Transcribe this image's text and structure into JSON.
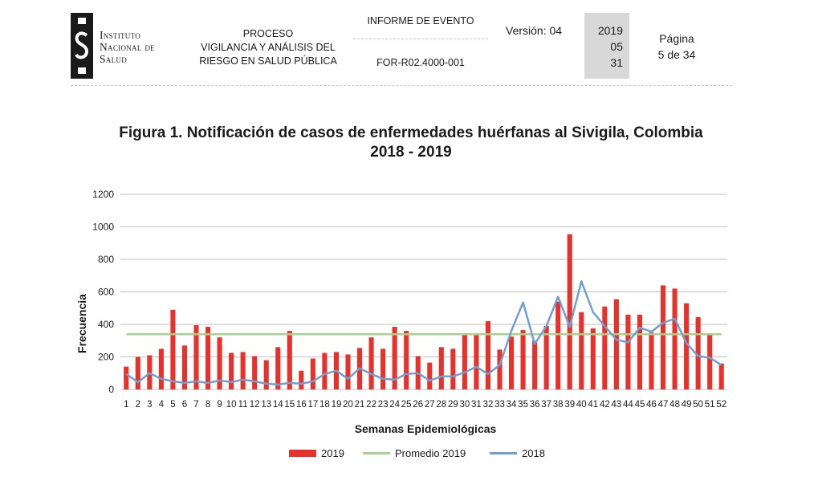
{
  "header": {
    "logo_lines": [
      "Instituto",
      "Nacional de",
      "Salud"
    ],
    "process_lines": [
      "PROCESO",
      "VIGILANCIA Y ANÁLISIS DEL",
      "RIESGO EN SALUD PÚBLICA"
    ],
    "report_title": "INFORME DE EVENTO",
    "report_code": "FOR-R02.4000-001",
    "version": "Versión: 04",
    "date_year": "2019",
    "date_month": "05",
    "date_day": "31",
    "page_label": "Página",
    "page_value": "5  de 34"
  },
  "figure": {
    "title_line1": "Figura 1. Notificación de casos de enfermedades huérfanas al Sivigila, Colombia",
    "title_line2": "2018 - 2019"
  },
  "colors": {
    "bars_2019": "#e8312a",
    "avg_2019": "#a9d18e",
    "line_2018": "#6f9fd3",
    "grid": "#bfbfbf"
  },
  "chart_data": {
    "type": "bar",
    "xlabel": "Semanas Epidemiológicas",
    "ylabel": "Frecuencia",
    "ylim": [
      0,
      1200
    ],
    "yticks": [
      0,
      200,
      400,
      600,
      800,
      1000,
      1200
    ],
    "grid": true,
    "legend_position": "bottom",
    "categories": [
      "1",
      "2",
      "3",
      "4",
      "5",
      "6",
      "7",
      "8",
      "9",
      "10",
      "11",
      "12",
      "13",
      "14",
      "15",
      "16",
      "17",
      "18",
      "19",
      "20",
      "21",
      "22",
      "23",
      "24",
      "25",
      "26",
      "27",
      "28",
      "29",
      "30",
      "31",
      "32",
      "33",
      "34",
      "35",
      "36",
      "37",
      "38",
      "39",
      "40",
      "41",
      "42",
      "43",
      "44",
      "45",
      "46",
      "47",
      "48",
      "49",
      "50",
      "51",
      "52"
    ],
    "series": [
      {
        "name": "2019",
        "type": "bar",
        "values": [
          140,
          200,
          210,
          250,
          490,
          270,
          395,
          385,
          320,
          225,
          230,
          205,
          180,
          260,
          360,
          115,
          190,
          225,
          230,
          215,
          255,
          320,
          250,
          385,
          360,
          205,
          165,
          260,
          250,
          335,
          335,
          420,
          245,
          325,
          365,
          300,
          390,
          540,
          955,
          475,
          375,
          510,
          555,
          460,
          460,
          350,
          640,
          620,
          530,
          445,
          340,
          160
        ]
      },
      {
        "name": "Promedio 2019",
        "type": "line",
        "values": [
          340,
          340,
          340,
          340,
          340,
          340,
          340,
          340,
          340,
          340,
          340,
          340,
          340,
          340,
          340,
          340,
          340,
          340,
          340,
          340,
          340,
          340,
          340,
          340,
          340,
          340,
          340,
          340,
          340,
          340,
          340,
          340,
          340,
          340,
          340,
          340,
          340,
          340,
          340,
          340,
          340,
          340,
          340,
          340,
          340,
          340,
          340,
          340,
          340,
          340,
          340,
          340
        ]
      },
      {
        "name": "2018",
        "type": "line",
        "values": [
          95,
          45,
          100,
          65,
          50,
          40,
          50,
          40,
          55,
          45,
          60,
          50,
          35,
          30,
          40,
          35,
          50,
          95,
          115,
          65,
          130,
          95,
          65,
          60,
          95,
          100,
          55,
          80,
          80,
          105,
          140,
          95,
          150,
          360,
          535,
          280,
          390,
          570,
          385,
          665,
          475,
          390,
          305,
          290,
          380,
          355,
          410,
          435,
          285,
          205,
          195,
          150
        ]
      }
    ]
  }
}
